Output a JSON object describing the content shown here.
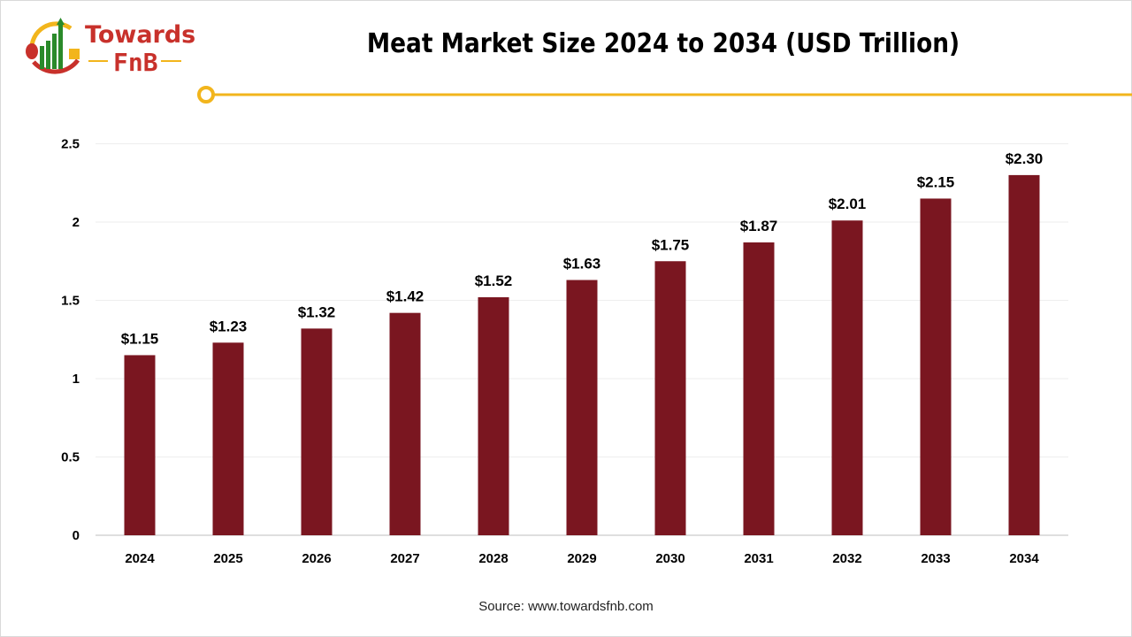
{
  "logo": {
    "text": "Towards FnB"
  },
  "colors": {
    "bar": "#7a1620",
    "accent": "#f2b51c",
    "logo_red": "#c8312b",
    "logo_green": "#2a8a2a"
  },
  "chart_data": {
    "type": "bar",
    "title": "Meat Market Size 2024 to 2034 (USD Trillion)",
    "categories": [
      "2024",
      "2025",
      "2026",
      "2027",
      "2028",
      "2029",
      "2030",
      "2031",
      "2032",
      "2033",
      "2034"
    ],
    "values": [
      1.15,
      1.23,
      1.32,
      1.42,
      1.52,
      1.63,
      1.75,
      1.87,
      2.01,
      2.15,
      2.3
    ],
    "data_labels": [
      "$1.15",
      "$1.23",
      "$1.32",
      "$1.42",
      "$1.52",
      "$1.63",
      "$1.75",
      "$1.87",
      "$2.01",
      "$2.15",
      "$2.30"
    ],
    "yticks": [
      "0",
      "0.5",
      "1",
      "1.5",
      "2",
      "2.5"
    ],
    "ylim": [
      0,
      2.5
    ],
    "grid": true,
    "xlabel": "",
    "ylabel": ""
  },
  "source": "Source: www.towardsfnb.com"
}
